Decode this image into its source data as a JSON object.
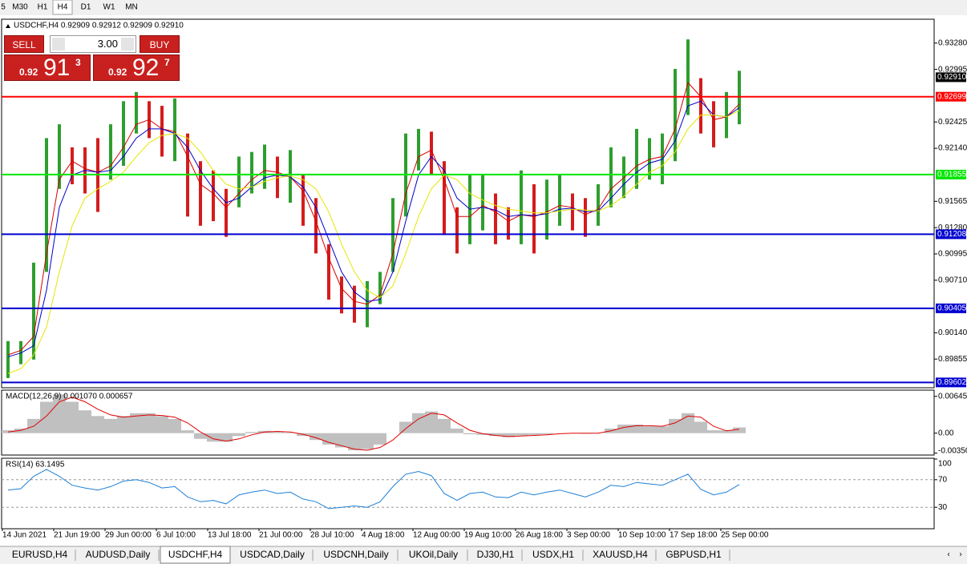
{
  "toolbar": {
    "timeframes": [
      "5",
      "M30",
      "H1",
      "H4",
      "D1",
      "W1",
      "MN"
    ],
    "active": "H4"
  },
  "trade_panel": {
    "sell": "SELL",
    "buy": "BUY",
    "lot": "3.00",
    "bid": {
      "prefix": "0.92",
      "big": "91",
      "sup": "3"
    },
    "ask": {
      "prefix": "0.92",
      "big": "92",
      "sup": "7"
    }
  },
  "tabs": [
    "EURUSD,H4",
    "AUDUSD,Daily",
    "USDCHF,H4",
    "USDCAD,Daily",
    "USDCNH,Daily",
    "UKOil,Daily",
    "DJ30,H1",
    "USDX,H1",
    "XAUUSD,H4",
    "GBPUSD,H1"
  ],
  "active_tab": "USDCHF,H4",
  "chart_data": [
    {
      "type": "range-bar",
      "title": "USDCHF,H4  0.92909 0.92912 0.92909 0.92910",
      "low": [
        0.8965,
        0.898,
        0.8985,
        0.908,
        0.917,
        0.9175,
        0.9165,
        0.9145,
        0.918,
        0.9195,
        0.923,
        0.9225,
        0.9205,
        0.92,
        0.914,
        0.913,
        0.9135,
        0.9118,
        0.915,
        0.9165,
        0.917,
        0.916,
        0.9155,
        0.913,
        0.91,
        0.905,
        0.9035,
        0.9025,
        0.902,
        0.9045,
        0.908,
        0.914,
        0.919,
        0.9185,
        0.912,
        0.91,
        0.911,
        0.9125,
        0.911,
        0.9115,
        0.911,
        0.91,
        0.9115,
        0.913,
        0.9125,
        0.9118,
        0.913,
        0.915,
        0.916,
        0.917,
        0.918,
        0.9175,
        0.92,
        0.925,
        0.923,
        0.9215,
        0.9225,
        0.924
      ],
      "high": [
        0.9005,
        0.9005,
        0.909,
        0.9225,
        0.924,
        0.9215,
        0.9215,
        0.9225,
        0.924,
        0.9265,
        0.9275,
        0.9265,
        0.926,
        0.9268,
        0.923,
        0.92,
        0.919,
        0.917,
        0.9205,
        0.921,
        0.9218,
        0.9205,
        0.9212,
        0.9185,
        0.916,
        0.911,
        0.9075,
        0.9065,
        0.907,
        0.908,
        0.916,
        0.923,
        0.9235,
        0.9232,
        0.92,
        0.915,
        0.9185,
        0.9185,
        0.9165,
        0.915,
        0.919,
        0.9175,
        0.918,
        0.9185,
        0.9165,
        0.916,
        0.9175,
        0.9215,
        0.9205,
        0.9235,
        0.9225,
        0.923,
        0.93,
        0.9332,
        0.929,
        0.9265,
        0.9275,
        0.9298
      ],
      "up_color": "#2e9e2e",
      "down_color": "#d41c1c",
      "ma_lines": [
        {
          "color": "#d40000",
          "values": [
            0.899,
            0.8995,
            0.901,
            0.91,
            0.918,
            0.92,
            0.9192,
            0.9188,
            0.9195,
            0.9215,
            0.924,
            0.9245,
            0.9235,
            0.9232,
            0.9205,
            0.9175,
            0.9165,
            0.915,
            0.9165,
            0.918,
            0.919,
            0.9188,
            0.9183,
            0.9168,
            0.9135,
            0.9095,
            0.9062,
            0.9048,
            0.9045,
            0.9055,
            0.91,
            0.9165,
            0.9205,
            0.9212,
            0.918,
            0.914,
            0.914,
            0.9152,
            0.9145,
            0.9135,
            0.9142,
            0.914,
            0.9145,
            0.9152,
            0.915,
            0.9142,
            0.9148,
            0.917,
            0.9182,
            0.9195,
            0.9202,
            0.9205,
            0.9235,
            0.9285,
            0.927,
            0.9245,
            0.9248,
            0.9262
          ]
        },
        {
          "color": "#0000c8",
          "values": [
            0.8988,
            0.8992,
            0.9,
            0.906,
            0.915,
            0.9185,
            0.919,
            0.9188,
            0.919,
            0.9205,
            0.9225,
            0.9235,
            0.9235,
            0.923,
            0.9215,
            0.919,
            0.917,
            0.9155,
            0.916,
            0.9172,
            0.9182,
            0.9185,
            0.9183,
            0.9172,
            0.915,
            0.9115,
            0.908,
            0.9058,
            0.9048,
            0.905,
            0.908,
            0.9135,
            0.9185,
            0.9205,
            0.919,
            0.916,
            0.9148,
            0.915,
            0.9147,
            0.914,
            0.9142,
            0.9141,
            0.9143,
            0.9148,
            0.9149,
            0.9145,
            0.9146,
            0.916,
            0.9175,
            0.9188,
            0.9198,
            0.9202,
            0.9222,
            0.926,
            0.9265,
            0.925,
            0.9248,
            0.9258
          ]
        },
        {
          "color": "#e6e600",
          "values": [
            0.897,
            0.8975,
            0.899,
            0.902,
            0.908,
            0.913,
            0.916,
            0.917,
            0.9178,
            0.9188,
            0.9205,
            0.922,
            0.9228,
            0.923,
            0.9225,
            0.921,
            0.919,
            0.9175,
            0.917,
            0.9172,
            0.9178,
            0.9182,
            0.9184,
            0.918,
            0.917,
            0.9145,
            0.911,
            0.908,
            0.906,
            0.9052,
            0.9065,
            0.91,
            0.914,
            0.917,
            0.9185,
            0.918,
            0.9165,
            0.9158,
            0.9152,
            0.9148,
            0.9146,
            0.9144,
            0.9144,
            0.9146,
            0.9148,
            0.9147,
            0.9146,
            0.9152,
            0.9162,
            0.9175,
            0.9188,
            0.9195,
            0.921,
            0.9235,
            0.925,
            0.925,
            0.9248,
            0.9255
          ]
        }
      ],
      "ylim": [
        0.89553,
        0.9353
      ],
      "yticks": [
        {
          "value": 0.9328,
          "label": "0.93280"
        },
        0.92995,
        0.92425,
        {
          "value": 0.9214,
          "label": "0.92140"
        },
        0.91565,
        {
          "value": 0.9128,
          "label": "0.91280"
        },
        0.90995,
        {
          "value": 0.9071,
          "label": "0.90710"
        },
        {
          "value": 0.9014,
          "label": "0.90140"
        },
        0.89855
      ],
      "levels": [
        {
          "value": 0.92699,
          "color": "#ff0000"
        },
        {
          "value": 0.91855,
          "color": "#00e600"
        },
        {
          "value": 0.91208,
          "color": "#0000d0"
        },
        {
          "value": 0.90405,
          "color": "#0000d0"
        },
        {
          "value": 0.89602,
          "color": "#0000d0"
        }
      ],
      "current": {
        "value": 0.9291,
        "label": "0.92910"
      }
    },
    {
      "type": "macd",
      "title": "MACD(12,26,9) 0.001070 0.000657",
      "histogram": [
        0.0005,
        0.0008,
        0.0025,
        0.0055,
        0.0068,
        0.0055,
        0.004,
        0.003,
        0.0025,
        0.003,
        0.0035,
        0.0035,
        0.003,
        0.0025,
        0.0005,
        -0.001,
        -0.0015,
        -0.0015,
        -0.0005,
        0.0002,
        0.0004,
        0.0002,
        0.0001,
        -0.0005,
        -0.0012,
        -0.002,
        -0.0025,
        -0.003,
        -0.0028,
        -0.002,
        0,
        0.002,
        0.0035,
        0.0038,
        0.0025,
        0.0008,
        -0.0002,
        -0.0003,
        -0.0005,
        -0.0007,
        -0.0004,
        -0.0003,
        -0.0002,
        0,
        0,
        -0.0001,
        0,
        0.0008,
        0.0015,
        0.0015,
        0.0012,
        0.0012,
        0.0025,
        0.0035,
        0.002,
        0.0005,
        0.0005,
        0.001
      ],
      "histogram_color": "#c0c0c0",
      "signal": [
        0.0002,
        0.0005,
        0.0012,
        0.003,
        0.0055,
        0.0063,
        0.0055,
        0.0042,
        0.0032,
        0.0028,
        0.003,
        0.0032,
        0.0031,
        0.0028,
        0.0018,
        0.0002,
        -0.001,
        -0.0014,
        -0.001,
        -0.0003,
        0.0002,
        0.0003,
        0.0002,
        -0.0002,
        -0.0008,
        -0.0016,
        -0.0022,
        -0.0028,
        -0.003,
        -0.0025,
        -0.0012,
        0.0008,
        0.0025,
        0.0035,
        0.0032,
        0.0018,
        0.0005,
        -0.0001,
        -0.0004,
        -0.0006,
        -0.0005,
        -0.0004,
        -0.0003,
        -0.0001,
        0,
        0,
        0,
        0.0004,
        0.001,
        0.0013,
        0.0013,
        0.0012,
        0.0018,
        0.003,
        0.0028,
        0.0012,
        0.0004,
        0.0007
      ],
      "signal_color": "#e00000",
      "ylim": [
        -0.0037,
        0.0074
      ],
      "yticks": [
        0.006451,
        {
          "value": 0,
          "label": "0.00"
        },
        {
          "value": -0.0035,
          "label": "-0.00350"
        }
      ]
    },
    {
      "type": "rsi",
      "title": "RSI(14) 63.1495",
      "values": [
        55,
        57,
        75,
        85,
        75,
        62,
        58,
        55,
        60,
        68,
        70,
        66,
        58,
        60,
        45,
        38,
        40,
        35,
        48,
        52,
        55,
        50,
        52,
        42,
        38,
        28,
        30,
        32,
        30,
        38,
        60,
        78,
        82,
        76,
        50,
        40,
        50,
        52,
        45,
        44,
        52,
        48,
        52,
        55,
        50,
        45,
        52,
        62,
        60,
        66,
        64,
        62,
        70,
        78,
        56,
        48,
        52,
        63
      ],
      "color": "#1e7fd6",
      "ylim": [
        0,
        100
      ],
      "yticks": [
        100,
        70,
        30
      ],
      "grid_levels": [
        70,
        30
      ],
      "categories": [
        "14 Jun 2021",
        null,
        null,
        null,
        "21 Jun 19:00",
        null,
        null,
        null,
        "29 Jun 00:00",
        null,
        null,
        null,
        "6 Jul 10:00",
        null,
        null,
        null,
        "13 Jul 18:00",
        null,
        null,
        null,
        "21 Jul 00:00",
        null,
        null,
        null,
        "28 Jul 10:00",
        null,
        null,
        null,
        "4 Aug 18:00",
        null,
        null,
        null,
        "12 Aug 00:00",
        null,
        null,
        null,
        "19 Aug 10:00",
        null,
        null,
        null,
        "26 Aug 18:00",
        null,
        null,
        null,
        "3 Sep 00:00",
        null,
        null,
        null,
        "10 Sep 10:00",
        null,
        null,
        null,
        "17 Sep 18:00",
        null,
        null,
        null,
        "25 Sep 00:00",
        null
      ]
    }
  ]
}
